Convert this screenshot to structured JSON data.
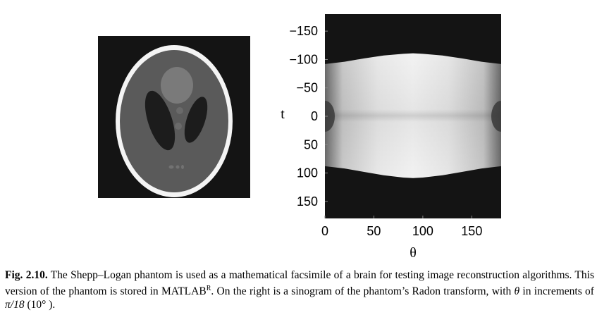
{
  "figure": {
    "label": "Fig. 2.10.",
    "caption": {
      "part1": "The Shepp–Logan phantom is used as a mathematical facsimile of a brain for testing image reconstruction algorithms. This version of the phantom is stored in MATLAB",
      "superscript": "R",
      "part2": ". On the right is a sinogram of the phantom’s Radon transform, with ",
      "theta_symbol": "θ",
      "part3": " in increments of ",
      "increment": "π/18",
      "part4": " (10° )."
    }
  },
  "colors": {
    "background_dark": "#141414",
    "phantom_ring": "#f4f4f4",
    "phantom_interior": "#5a5a5a",
    "ventricle_dark": "#1c1c1c",
    "upper_ellipse": "#7a7a7a"
  },
  "chart_data": {
    "type": "heatmap",
    "title": "",
    "xlabel": "θ",
    "ylabel": "t",
    "xlim": [
      0,
      180
    ],
    "ylim": [
      -180,
      180
    ],
    "y_inverted": true,
    "x_ticks": [
      "0",
      "50",
      "100",
      "150"
    ],
    "y_ticks": [
      "−150",
      "−100",
      "−50",
      "0",
      "50",
      "100",
      "150"
    ],
    "support_boundary": {
      "theta": [
        0,
        20,
        40,
        60,
        80,
        90,
        100,
        120,
        140,
        160,
        180
      ],
      "t_upper": [
        -92,
        -96,
        -102,
        -107,
        -110,
        -111,
        -110,
        -107,
        -102,
        -96,
        -92
      ],
      "t_lower": [
        88,
        92,
        98,
        104,
        108,
        109,
        108,
        104,
        98,
        92,
        88
      ]
    }
  }
}
